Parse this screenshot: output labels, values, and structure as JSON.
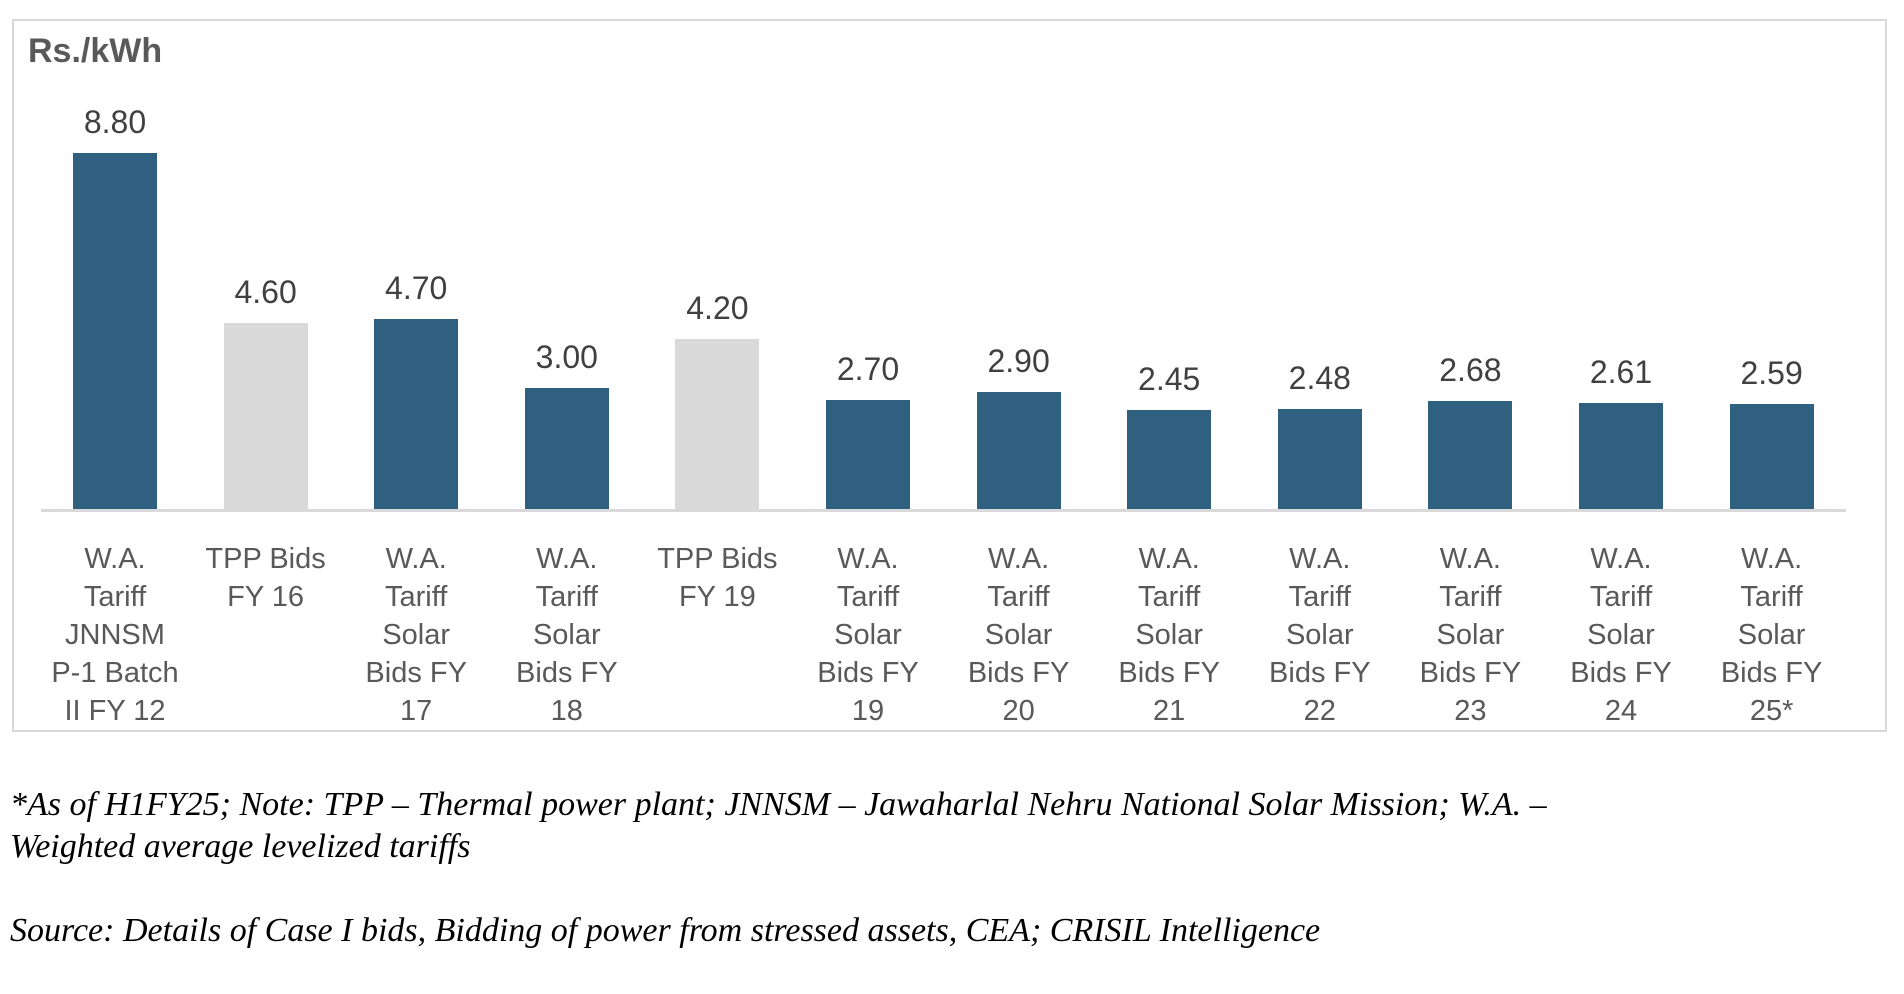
{
  "chart_data": {
    "type": "bar",
    "unit_label": "Rs./kWh",
    "categories": [
      "W.A.\nTariff\nJNNSM\nP-1 Batch\nII FY 12",
      "TPP Bids\nFY 16",
      "W.A.\nTariff\nSolar\nBids FY\n17",
      "W.A.\nTariff\nSolar\nBids FY\n18",
      "TPP Bids\nFY 19",
      "W.A.\nTariff\nSolar\nBids FY\n19",
      "W.A.\nTariff\nSolar\nBids FY\n20",
      "W.A.\nTariff\nSolar\nBids FY\n21",
      "W.A.\nTariff\nSolar\nBids FY\n22",
      "W.A.\nTariff\nSolar\nBids FY\n23",
      "W.A.\nTariff\nSolar\nBids FY\n24",
      "W.A.\nTariff\nSolar\nBids FY\n25*"
    ],
    "values": [
      8.8,
      4.6,
      4.7,
      3.0,
      4.2,
      2.7,
      2.9,
      2.45,
      2.48,
      2.68,
      2.61,
      2.59
    ],
    "value_labels": [
      "8.80",
      "4.60",
      "4.70",
      "3.00",
      "4.20",
      "2.70",
      "2.90",
      "2.45",
      "2.48",
      "2.68",
      "2.61",
      "2.59"
    ],
    "bar_types": [
      "solar",
      "tpp",
      "solar",
      "solar",
      "tpp",
      "solar",
      "solar",
      "solar",
      "solar",
      "solar",
      "solar",
      "solar"
    ],
    "colors": {
      "solar_bid_bar": "#2F6080",
      "tpp_bid_bar": "#D9D9D9"
    },
    "axis_line_color": "#D9D9D9",
    "ylim": [
      0,
      9.6
    ],
    "grid": false,
    "legend": false,
    "title": "",
    "xlabel": "",
    "ylabel": "Rs./kWh"
  },
  "footer": {
    "note": "*As of H1FY25; Note: TPP – Thermal power plant; JNNSM – Jawaharlal Nehru National Solar Mission; W.A. –\nWeighted average levelized tariffs",
    "source": "Source: Details of Case I bids, Bidding of power from stressed assets, CEA; CRISIL Intelligence"
  }
}
